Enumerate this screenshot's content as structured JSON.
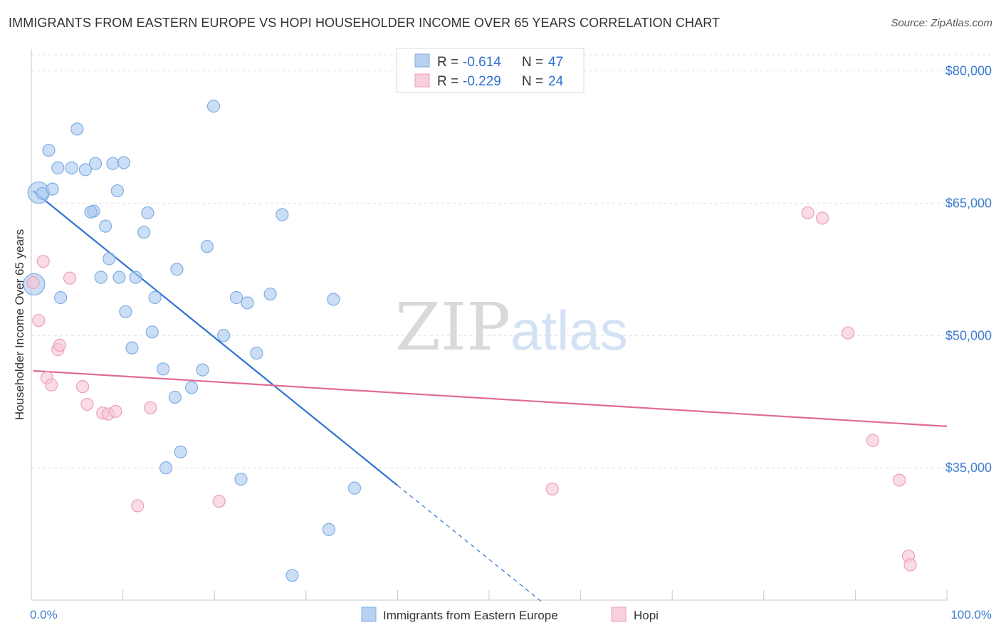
{
  "chart_data": {
    "type": "scatter",
    "title": "IMMIGRANTS FROM EASTERN EUROPE VS HOPI HOUSEHOLDER INCOME OVER 65 YEARS CORRELATION CHART",
    "source": "Source: ZipAtlas.com",
    "xlabel": "",
    "ylabel": "Householder Income Over 65 years",
    "xlim": [
      0,
      100
    ],
    "ylim": [
      20000,
      84000
    ],
    "x_tick_labels": {
      "min": "0.0%",
      "max": "100.0%"
    },
    "y_ticks": [
      {
        "value": 35000,
        "label": "$35,000"
      },
      {
        "value": 50000,
        "label": "$50,000"
      },
      {
        "value": 65000,
        "label": "$65,000"
      },
      {
        "value": 80000,
        "label": "$80,000"
      }
    ],
    "grid": true,
    "watermark": {
      "zip": "ZIP",
      "atlas": "atlas"
    },
    "legend_stats": [
      {
        "r_label": "R =",
        "r_value": "-0.614",
        "n_label": "N =",
        "n_value": "47"
      },
      {
        "r_label": "R =",
        "r_value": "-0.229",
        "n_label": "N =",
        "n_value": "24"
      }
    ],
    "series": [
      {
        "name": "Immigrants from Eastern Europe",
        "color": "#a9c8ee",
        "stroke": "#7eaee4",
        "line_color": "#2f72d0",
        "trend": {
          "x0": 0.2,
          "y0": 66400,
          "x1": 40,
          "y1": 33000,
          "dash_to_x": 56,
          "dash_to_y": 19600
        },
        "points": [
          {
            "x": 0.3,
            "y": 55800,
            "big": true
          },
          {
            "x": 0.8,
            "y": 66200,
            "big": true
          },
          {
            "x": 1.2,
            "y": 66100
          },
          {
            "x": 2.3,
            "y": 66600
          },
          {
            "x": 1.9,
            "y": 71000
          },
          {
            "x": 2.9,
            "y": 69000
          },
          {
            "x": 4.4,
            "y": 69000
          },
          {
            "x": 3.2,
            "y": 54300
          },
          {
            "x": 5.0,
            "y": 73400
          },
          {
            "x": 6.8,
            "y": 64100
          },
          {
            "x": 5.9,
            "y": 68800
          },
          {
            "x": 6.5,
            "y": 64000
          },
          {
            "x": 7.0,
            "y": 69500
          },
          {
            "x": 8.1,
            "y": 62400
          },
          {
            "x": 8.9,
            "y": 69500
          },
          {
            "x": 10.1,
            "y": 69600
          },
          {
            "x": 7.6,
            "y": 56600
          },
          {
            "x": 9.4,
            "y": 66400
          },
          {
            "x": 8.5,
            "y": 58700
          },
          {
            "x": 9.6,
            "y": 56600
          },
          {
            "x": 11.4,
            "y": 56600
          },
          {
            "x": 10.3,
            "y": 52700
          },
          {
            "x": 12.3,
            "y": 61700
          },
          {
            "x": 12.7,
            "y": 63900
          },
          {
            "x": 13.5,
            "y": 54300
          },
          {
            "x": 11.0,
            "y": 48600
          },
          {
            "x": 13.2,
            "y": 50400
          },
          {
            "x": 14.4,
            "y": 46200
          },
          {
            "x": 15.9,
            "y": 57500
          },
          {
            "x": 15.7,
            "y": 43000
          },
          {
            "x": 14.7,
            "y": 35000
          },
          {
            "x": 16.3,
            "y": 36800
          },
          {
            "x": 17.5,
            "y": 44100
          },
          {
            "x": 19.2,
            "y": 60100
          },
          {
            "x": 18.7,
            "y": 46100
          },
          {
            "x": 19.9,
            "y": 76000
          },
          {
            "x": 21.0,
            "y": 50000
          },
          {
            "x": 22.4,
            "y": 54300
          },
          {
            "x": 22.9,
            "y": 33700
          },
          {
            "x": 23.6,
            "y": 53700
          },
          {
            "x": 24.6,
            "y": 48000
          },
          {
            "x": 26.1,
            "y": 54700
          },
          {
            "x": 27.4,
            "y": 63700
          },
          {
            "x": 28.5,
            "y": 22800
          },
          {
            "x": 32.5,
            "y": 28000
          },
          {
            "x": 33.0,
            "y": 54100
          },
          {
            "x": 35.3,
            "y": 32700
          }
        ]
      },
      {
        "name": "Hopi",
        "color": "#f6c5d4",
        "stroke": "#ee9fb7",
        "line_color": "#e06b96",
        "trend": {
          "x0": 0.2,
          "y0": 46000,
          "x1": 100,
          "y1": 39700
        },
        "points": [
          {
            "x": 0.2,
            "y": 56000
          },
          {
            "x": 0.8,
            "y": 51700
          },
          {
            "x": 1.3,
            "y": 58400
          },
          {
            "x": 1.7,
            "y": 45200
          },
          {
            "x": 2.2,
            "y": 44400
          },
          {
            "x": 2.9,
            "y": 48400
          },
          {
            "x": 3.1,
            "y": 48900
          },
          {
            "x": 4.2,
            "y": 56500
          },
          {
            "x": 5.6,
            "y": 44200
          },
          {
            "x": 6.1,
            "y": 42200
          },
          {
            "x": 7.8,
            "y": 41200
          },
          {
            "x": 8.4,
            "y": 41100
          },
          {
            "x": 9.2,
            "y": 41400
          },
          {
            "x": 11.6,
            "y": 30700
          },
          {
            "x": 13.0,
            "y": 41800
          },
          {
            "x": 20.5,
            "y": 31200
          },
          {
            "x": 56.9,
            "y": 32600
          },
          {
            "x": 84.8,
            "y": 63900
          },
          {
            "x": 86.4,
            "y": 63300
          },
          {
            "x": 89.2,
            "y": 50300
          },
          {
            "x": 91.9,
            "y": 38100
          },
          {
            "x": 94.8,
            "y": 33600
          },
          {
            "x": 95.8,
            "y": 25000
          },
          {
            "x": 96.0,
            "y": 24000
          }
        ]
      }
    ]
  }
}
